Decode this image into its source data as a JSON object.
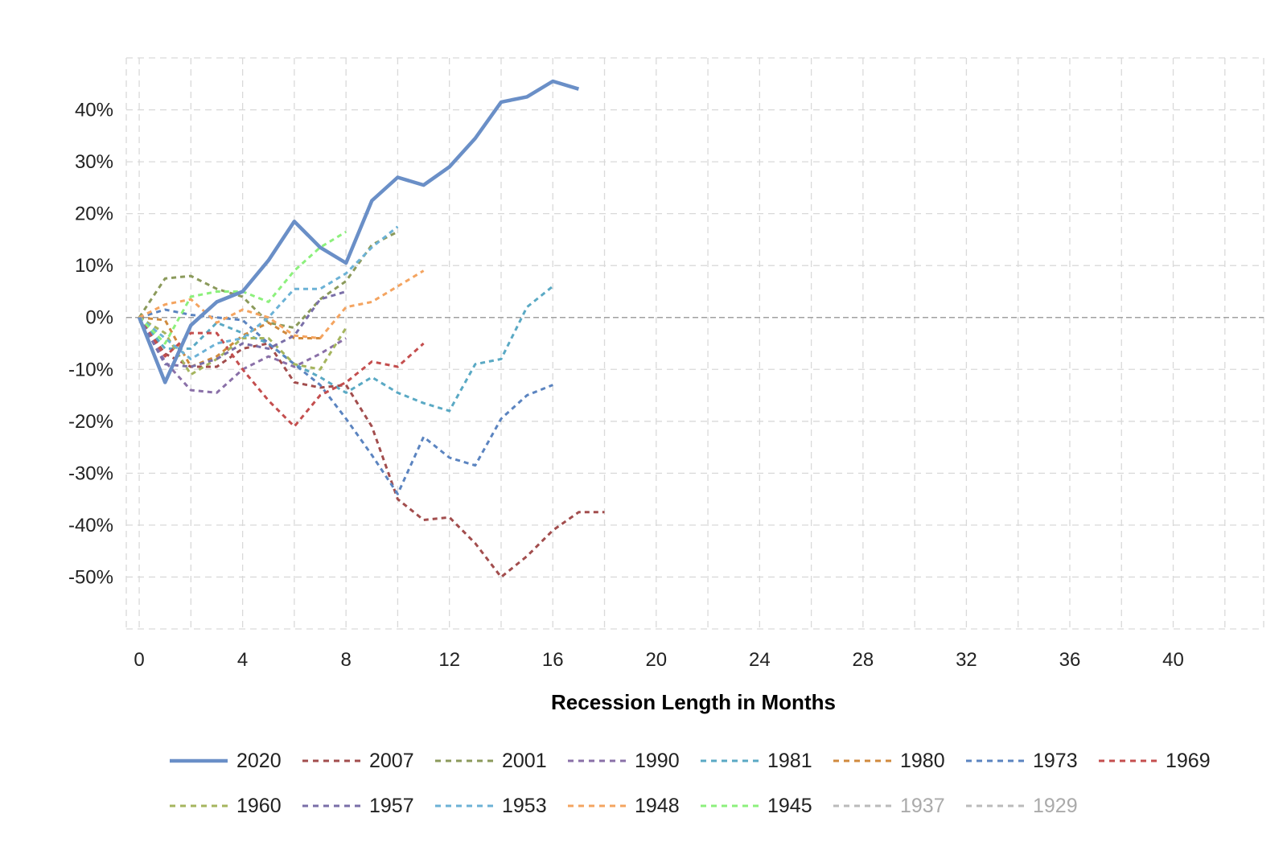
{
  "chart_data": {
    "type": "line",
    "title": "",
    "xlabel": "Recession Length in Months",
    "ylabel": "",
    "xlim": [
      -0.5,
      43.5
    ],
    "ylim": [
      -60,
      50
    ],
    "x_ticks": [
      0,
      4,
      8,
      12,
      16,
      20,
      24,
      28,
      32,
      36,
      40
    ],
    "x_tick_labels": [
      "0",
      "4",
      "8",
      "12",
      "16",
      "20",
      "24",
      "28",
      "32",
      "36",
      "40"
    ],
    "y_ticks": [
      40,
      30,
      20,
      10,
      0,
      -10,
      -20,
      -30,
      -40,
      -50
    ],
    "y_tick_labels": [
      "40%",
      "30%",
      "20%",
      "10%",
      "0%",
      "-10%",
      "-20%",
      "-30%",
      "-40%",
      "-50%"
    ],
    "grid": true,
    "grid_style": "dashed",
    "zero_line": true,
    "legend_position": "bottom",
    "series": [
      {
        "name": "2020",
        "color": "#6A8FC7",
        "style": "solid",
        "visible": true,
        "x": [
          0,
          1,
          2,
          3,
          4,
          5,
          6,
          7,
          8,
          9,
          10,
          11,
          12,
          13,
          14,
          15,
          16,
          17
        ],
        "y": [
          0,
          -12.5,
          -1.5,
          3,
          5,
          11,
          18.5,
          13.5,
          10.5,
          22.5,
          27,
          25.5,
          29,
          34.5,
          41.5,
          42.5,
          45.5,
          44
        ]
      },
      {
        "name": "2007",
        "color": "#A24D4D",
        "style": "dashed",
        "visible": true,
        "x": [
          0,
          1,
          2,
          3,
          4,
          5,
          6,
          7,
          8,
          9,
          10,
          11,
          12,
          13,
          14,
          15,
          16,
          17,
          18
        ],
        "y": [
          0,
          -7,
          -9.5,
          -9.5,
          -6,
          -5,
          -12.5,
          -13.5,
          -13,
          -21,
          -35,
          -39,
          -38.5,
          -43.5,
          -50,
          -46,
          -41,
          -37.5,
          -37.5
        ]
      },
      {
        "name": "2001",
        "color": "#8B9A5B",
        "style": "dashed",
        "visible": true,
        "x": [
          0,
          1,
          2,
          3,
          4,
          5,
          6,
          7,
          8,
          9,
          10
        ],
        "y": [
          0,
          7.5,
          8,
          5.5,
          4,
          -1,
          -2,
          3.5,
          7,
          14,
          16.5
        ]
      },
      {
        "name": "1990",
        "color": "#8A70A8",
        "style": "dashed",
        "visible": true,
        "x": [
          0,
          1,
          2,
          3,
          4,
          5,
          6,
          7,
          8
        ],
        "y": [
          0,
          -8.5,
          -14,
          -14.5,
          -10,
          -7.5,
          -9.5,
          -7,
          -4
        ]
      },
      {
        "name": "1981",
        "color": "#5AA9C4",
        "style": "dashed",
        "visible": true,
        "x": [
          0,
          1,
          2,
          3,
          4,
          5,
          6,
          7,
          8,
          9,
          10,
          11,
          12,
          13,
          14,
          15,
          16
        ],
        "y": [
          0,
          -6,
          -6,
          -1,
          -3,
          -5,
          -9,
          -11.5,
          -14.5,
          -11.5,
          -14.5,
          -16.5,
          -18,
          -9,
          -8,
          2,
          6
        ]
      },
      {
        "name": "1980",
        "color": "#D08A3D",
        "style": "dashed",
        "visible": true,
        "x": [
          0,
          1,
          2,
          3,
          4,
          5,
          6,
          7
        ],
        "y": [
          0,
          -0.5,
          -9.5,
          -7.5,
          -3.5,
          -1,
          -4,
          -4
        ]
      },
      {
        "name": "1973",
        "color": "#5B84C0",
        "style": "dashed",
        "visible": true,
        "x": [
          0,
          1,
          2,
          3,
          4,
          5,
          6,
          7,
          8,
          9,
          10,
          11,
          12,
          13,
          14,
          15,
          16
        ],
        "y": [
          0,
          1.5,
          0.5,
          0,
          -0.5,
          -5,
          -9,
          -13,
          -19.5,
          -26.5,
          -34,
          -23,
          -27,
          -28.5,
          -19.5,
          -15,
          -13
        ]
      },
      {
        "name": "1969",
        "color": "#C44E4E",
        "style": "dashed",
        "visible": true,
        "x": [
          0,
          1,
          2,
          3,
          4,
          5,
          6,
          7,
          8,
          9,
          10,
          11
        ],
        "y": [
          0,
          -7.5,
          -3,
          -3,
          -10,
          -16,
          -21,
          -15,
          -12.5,
          -8.5,
          -9.5,
          -5
        ]
      },
      {
        "name": "1960",
        "color": "#A5B55E",
        "style": "dashed",
        "visible": true,
        "x": [
          0,
          1,
          2,
          3,
          4,
          5,
          6,
          7,
          8
        ],
        "y": [
          0,
          -3,
          -11,
          -8,
          -4,
          -4,
          -9,
          -10,
          -2
        ]
      },
      {
        "name": "1957",
        "color": "#7A6FA8",
        "style": "dashed",
        "visible": true,
        "x": [
          0,
          1,
          2,
          3,
          4,
          5,
          6,
          7,
          8
        ],
        "y": [
          0,
          -9,
          -9.5,
          -8,
          -5,
          -6,
          -3.5,
          3.5,
          5
        ]
      },
      {
        "name": "1953",
        "color": "#6CB2D6",
        "style": "dashed",
        "visible": true,
        "x": [
          0,
          1,
          2,
          3,
          4,
          5,
          6,
          7,
          8,
          9,
          10
        ],
        "y": [
          0,
          -4,
          -8,
          -5,
          -4,
          0,
          5.5,
          5.5,
          8.5,
          13.5,
          17.5
        ]
      },
      {
        "name": "1948",
        "color": "#F4A460",
        "style": "dashed",
        "visible": true,
        "x": [
          0,
          1,
          2,
          3,
          4,
          5,
          6,
          7,
          8,
          9,
          10,
          11
        ],
        "y": [
          0,
          2.5,
          3.5,
          -1,
          1.5,
          0,
          -3.5,
          -4,
          2,
          3,
          6,
          9
        ]
      },
      {
        "name": "1945",
        "color": "#8CF07C",
        "style": "dashed",
        "visible": true,
        "x": [
          0,
          1,
          2,
          3,
          4,
          5,
          6,
          7,
          8
        ],
        "y": [
          0,
          -5,
          4,
          5,
          5,
          3,
          9,
          13.5,
          16.5
        ]
      },
      {
        "name": "1937",
        "color": "#BBBBBB",
        "style": "dashed",
        "visible": false,
        "x": [],
        "y": []
      },
      {
        "name": "1929",
        "color": "#BBBBBB",
        "style": "dashed",
        "visible": false,
        "x": [],
        "y": []
      }
    ]
  }
}
